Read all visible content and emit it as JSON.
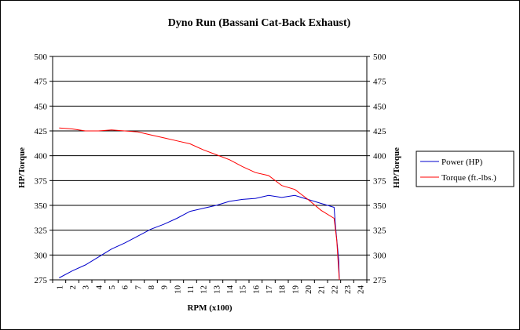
{
  "chart_data": {
    "type": "line",
    "title": "Dyno Run (Bassani Cat-Back Exhaust)",
    "xlabel": "RPM (x100)",
    "ylabel_left": "HP/Torque",
    "ylabel_right": "HP/Torque",
    "ylim": [
      275,
      500
    ],
    "yticks": [
      275,
      300,
      325,
      350,
      375,
      400,
      425,
      450,
      475,
      500
    ],
    "xticks": [
      "1",
      "2",
      "3",
      "4",
      "5",
      "6",
      "7",
      "8",
      "9",
      "10",
      "11",
      "12",
      "13",
      "14",
      "15",
      "16",
      "17",
      "18",
      "19",
      "20",
      "21",
      "22",
      "23",
      "24"
    ],
    "grid": "horizontal",
    "legend_position": "right",
    "series": [
      {
        "name": "Power (HP)",
        "color": "#0000cc",
        "points": [
          [
            1,
            277
          ],
          [
            2,
            284
          ],
          [
            3,
            290
          ],
          [
            4,
            298
          ],
          [
            5,
            306
          ],
          [
            6,
            312
          ],
          [
            7,
            319
          ],
          [
            8,
            326
          ],
          [
            9,
            331
          ],
          [
            10,
            337
          ],
          [
            11,
            344
          ],
          [
            12,
            347
          ],
          [
            13,
            350
          ],
          [
            14,
            354
          ],
          [
            15,
            356
          ],
          [
            16,
            357
          ],
          [
            17,
            360
          ],
          [
            18,
            358
          ],
          [
            19,
            360
          ],
          [
            20,
            356
          ],
          [
            21,
            352
          ],
          [
            22,
            348
          ],
          [
            22.1,
            330
          ],
          [
            22.35,
            295
          ],
          [
            22.4,
            275
          ]
        ]
      },
      {
        "name": "Torque (ft.-lbs.)",
        "color": "#ff0000",
        "points": [
          [
            1,
            428
          ],
          [
            2,
            427
          ],
          [
            3,
            425
          ],
          [
            4,
            425
          ],
          [
            5,
            426
          ],
          [
            6,
            425
          ],
          [
            7,
            424
          ],
          [
            8,
            421
          ],
          [
            9,
            418
          ],
          [
            10,
            415
          ],
          [
            11,
            412
          ],
          [
            12,
            406
          ],
          [
            13,
            401
          ],
          [
            14,
            396
          ],
          [
            15,
            389
          ],
          [
            16,
            383
          ],
          [
            17,
            380
          ],
          [
            18,
            370
          ],
          [
            19,
            366
          ],
          [
            20,
            356
          ],
          [
            21,
            345
          ],
          [
            22,
            337
          ],
          [
            22.2,
            315
          ],
          [
            22.3,
            295
          ],
          [
            22.4,
            275
          ]
        ]
      }
    ]
  }
}
